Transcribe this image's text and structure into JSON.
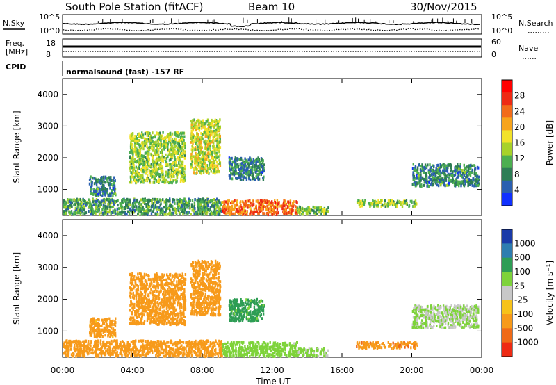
{
  "header": {
    "station": "South Pole Station (fitACF)",
    "beam": "Beam 10",
    "date": "30/Nov/2015"
  },
  "panels": {
    "nsky": {
      "label": "N.Sky",
      "top": "10^5",
      "bottom": "10^0"
    },
    "nsearch": {
      "label": "N.Search",
      "top": "10^5",
      "bottom": "10^0"
    },
    "freq": {
      "label_line1": "Freq.",
      "label_line2": "[MHz]",
      "top": "18",
      "bottom": "8"
    },
    "nave": {
      "label": "Nave",
      "top": "60",
      "bottom": "0"
    },
    "cpid": {
      "label": "CPID",
      "text": "normalsound (fast) -157 RF"
    }
  },
  "chart_data": [
    {
      "type": "heatmap",
      "name": "power",
      "ylabel": "Slant Range [km]",
      "ylim": [
        180,
        4500
      ],
      "yticks": [
        "1000",
        "2000",
        "3000",
        "4000"
      ],
      "colorbar_label": "Power [dB]",
      "colorbar_ticks": [
        "4",
        "8",
        "12",
        "16",
        "20",
        "24",
        "28"
      ],
      "colorscale": [
        "#1030ff",
        "#2a5fb0",
        "#2e7d55",
        "#4caf50",
        "#a8d22a",
        "#f2e22a",
        "#f7a41c",
        "#f26b1a",
        "#ee2a14",
        "#ff0000"
      ],
      "regions": [
        {
          "t": [
            0.0,
            9.1
          ],
          "r": [
            200,
            700
          ],
          "value": 10
        },
        {
          "t": [
            9.1,
            13.4
          ],
          "r": [
            200,
            650
          ],
          "value": 24
        },
        {
          "t": [
            13.4,
            15.2
          ],
          "r": [
            200,
            450
          ],
          "value": 12
        },
        {
          "t": [
            16.8,
            20.3
          ],
          "r": [
            450,
            650
          ],
          "value": 14
        },
        {
          "t": [
            1.5,
            3.0
          ],
          "r": [
            800,
            1400
          ],
          "value": 8
        },
        {
          "t": [
            3.8,
            7.0
          ],
          "r": [
            1200,
            2800
          ],
          "value": 14
        },
        {
          "t": [
            7.3,
            9.0
          ],
          "r": [
            1500,
            3200
          ],
          "value": 16
        },
        {
          "t": [
            9.5,
            11.5
          ],
          "r": [
            1300,
            2000
          ],
          "value": 8
        },
        {
          "t": [
            20.0,
            23.8
          ],
          "r": [
            1100,
            1800
          ],
          "value": 8
        }
      ]
    },
    {
      "type": "heatmap",
      "name": "velocity",
      "ylabel": "Slant Range [km]",
      "ylim": [
        180,
        4500
      ],
      "yticks": [
        "1000",
        "2000",
        "3000",
        "4000"
      ],
      "xlabel": "Time UT",
      "xticks": [
        "00:00",
        "04:00",
        "08:00",
        "12:00",
        "16:00",
        "20:00",
        "00:00"
      ],
      "colorbar_label": "Velocity [m s⁻¹]",
      "colorbar_ticks": [
        "1000",
        "500",
        "100",
        "25",
        "-25",
        "-100",
        "-500",
        "-1000"
      ],
      "colorscale": [
        "#1a3aa8",
        "#2e7db0",
        "#2e9d55",
        "#7ed33a",
        "#c8c8c8",
        "#f7c21a",
        "#f79a1a",
        "#ef6a18",
        "#ee2a14"
      ],
      "regions": [
        {
          "t": [
            0.0,
            9.1
          ],
          "r": [
            200,
            700
          ],
          "value": -250
        },
        {
          "t": [
            9.1,
            13.4
          ],
          "r": [
            200,
            650
          ],
          "value": 60
        },
        {
          "t": [
            13.4,
            15.2
          ],
          "r": [
            200,
            450
          ],
          "value": 40
        },
        {
          "t": [
            16.8,
            20.3
          ],
          "r": [
            450,
            650
          ],
          "value": -350
        },
        {
          "t": [
            1.5,
            3.0
          ],
          "r": [
            800,
            1400
          ],
          "value": -200
        },
        {
          "t": [
            3.8,
            7.0
          ],
          "r": [
            1200,
            2800
          ],
          "value": -300
        },
        {
          "t": [
            7.3,
            9.0
          ],
          "r": [
            1500,
            3200
          ],
          "value": -300
        },
        {
          "t": [
            9.5,
            11.5
          ],
          "r": [
            1300,
            2000
          ],
          "value": 200
        },
        {
          "t": [
            20.0,
            23.8
          ],
          "r": [
            1100,
            1800
          ],
          "value": 25
        }
      ]
    }
  ]
}
